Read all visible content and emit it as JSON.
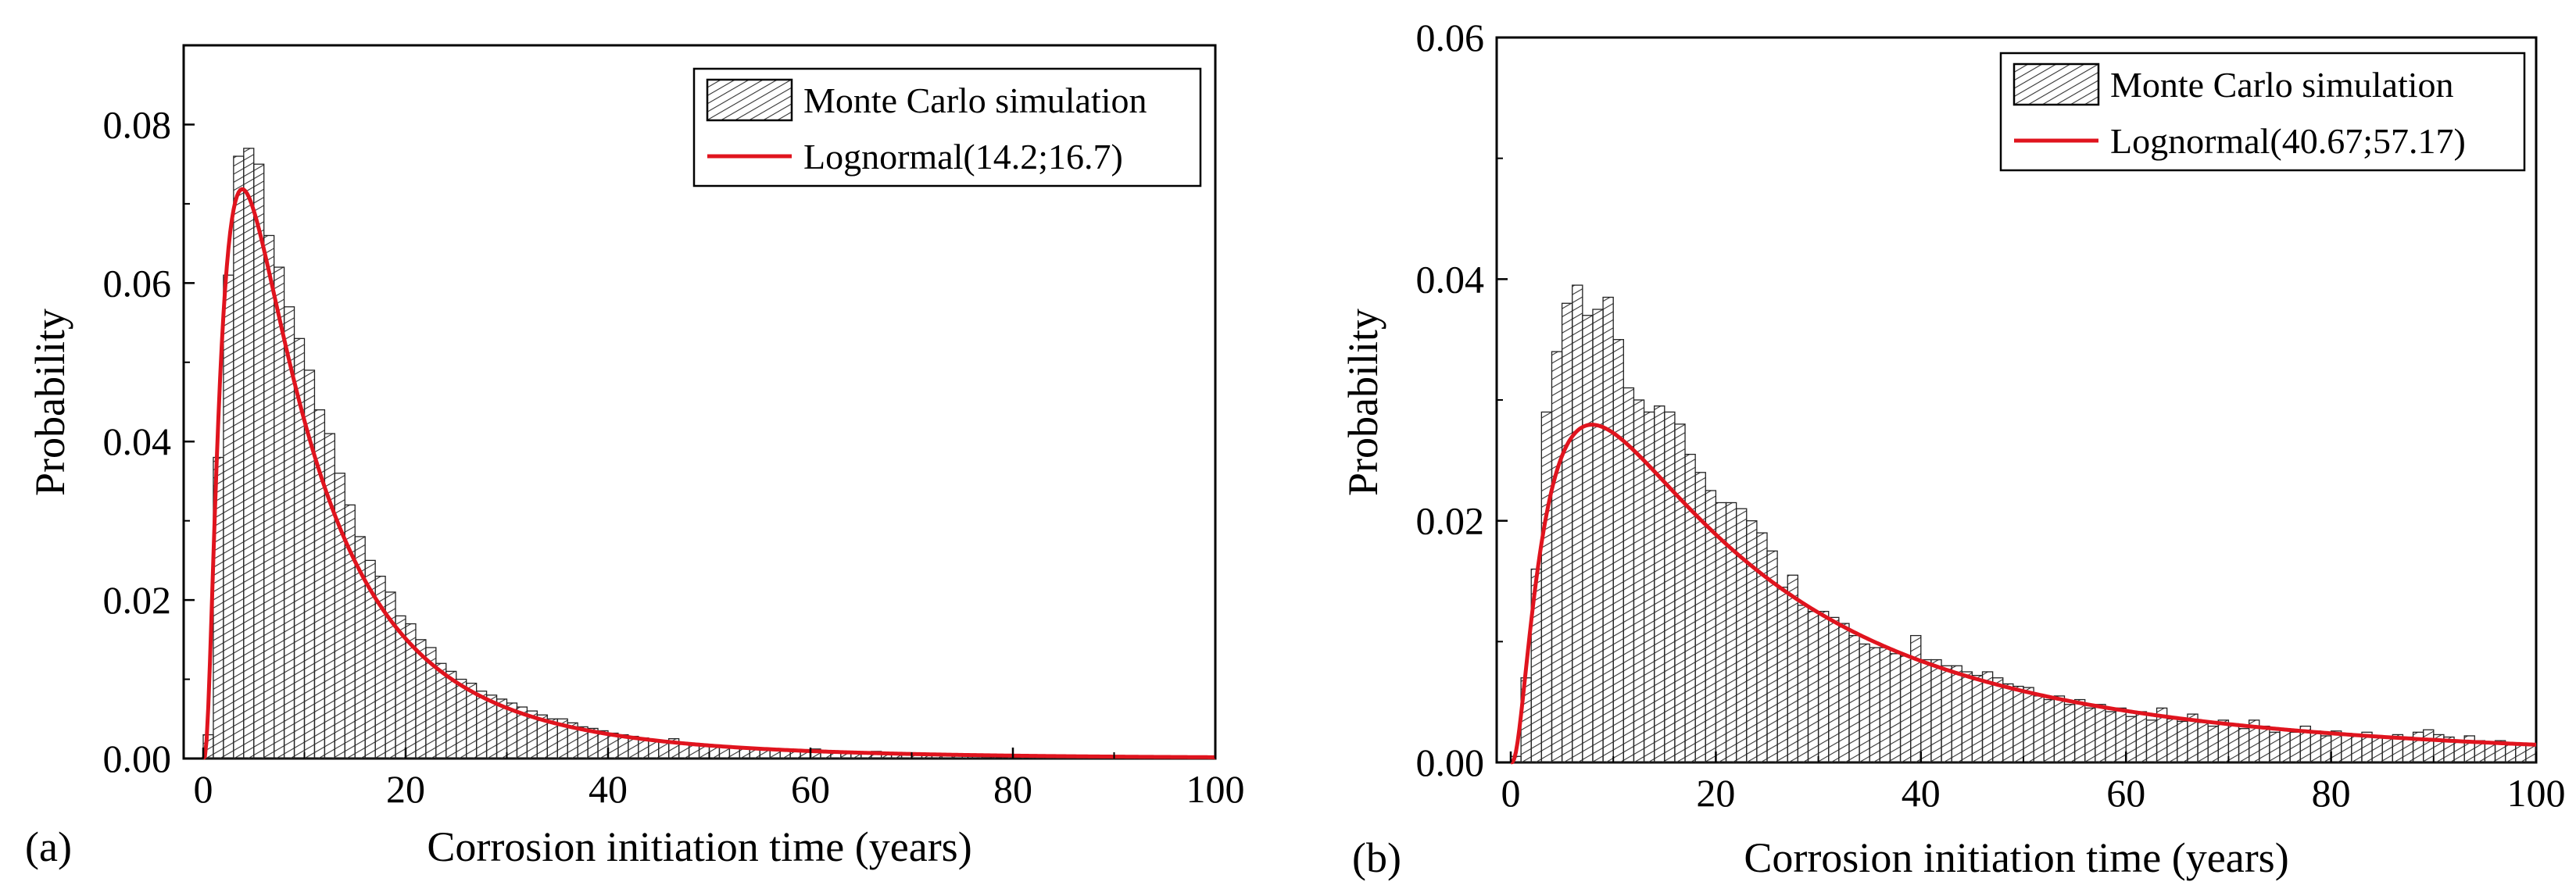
{
  "figure": {
    "description_labels": [
      "(a)",
      "(b)"
    ]
  },
  "colors": {
    "curve": "#e0141e",
    "bar_fill": "#ffffff",
    "bar_edge": "#222222",
    "hatch": "#333333",
    "axis": "#000000"
  },
  "chart_data": [
    {
      "type": "bar",
      "panel_label": "(a)",
      "xlabel": "Corrosion initiation time (years)",
      "ylabel": "Probability",
      "xlim": [
        0,
        100
      ],
      "ylim": [
        0,
        0.09
      ],
      "xticks": [
        0,
        20,
        40,
        60,
        80,
        100
      ],
      "xtick_labels": [
        "0",
        "20",
        "40",
        "60",
        "80",
        "100"
      ],
      "yticks": [
        0.0,
        0.02,
        0.04,
        0.06,
        0.08
      ],
      "ytick_labels": [
        "0.00",
        "0.02",
        "0.04",
        "0.06",
        "0.08"
      ],
      "legend": {
        "position": "top-right",
        "histogram_label": "Monte Carlo simulation",
        "curve_label": "Lognormal(14.2;16.7)"
      },
      "histogram": {
        "name": "Monte Carlo simulation",
        "bin_width": 1,
        "bin_start": 0,
        "values": [
          0.003,
          0.038,
          0.061,
          0.076,
          0.077,
          0.075,
          0.066,
          0.062,
          0.057,
          0.053,
          0.049,
          0.044,
          0.041,
          0.036,
          0.032,
          0.028,
          0.025,
          0.023,
          0.021,
          0.018,
          0.017,
          0.015,
          0.014,
          0.012,
          0.011,
          0.01,
          0.0095,
          0.0085,
          0.008,
          0.0075,
          0.007,
          0.0065,
          0.006,
          0.0055,
          0.005,
          0.005,
          0.0045,
          0.004,
          0.0038,
          0.0035,
          0.0032,
          0.003,
          0.0028,
          0.0026,
          0.0024,
          0.0022,
          0.0025,
          0.002,
          0.0018,
          0.0017,
          0.0016,
          0.0015,
          0.0014,
          0.0013,
          0.0012,
          0.0012,
          0.0011,
          0.001,
          0.001,
          0.0009,
          0.0012,
          0.0009,
          0.0008,
          0.0008,
          0.0007,
          0.0007,
          0.0009,
          0.0006,
          0.0006,
          0.0005,
          0.0007,
          0.0005,
          0.0005,
          0.0004,
          0.0004,
          0.0004,
          0.0003,
          0.0003,
          0.0003,
          0.0003,
          0.0003,
          0.0002,
          0.0002,
          0.0002,
          0.0002,
          0.0002,
          0.0002,
          0.0002,
          0.0001,
          0.0001,
          0.0002,
          0.0001,
          0.0001,
          0.0001,
          0.0001,
          0.0001,
          0.0001,
          0.0001,
          0.0001,
          0.0001
        ]
      },
      "curve": {
        "name": "Lognormal(14.2;16.7)",
        "mean": 14.2,
        "std": 16.7
      }
    },
    {
      "type": "bar",
      "panel_label": "(b)",
      "xlabel": "Corrosion initiation time (years)",
      "ylabel": "Probability",
      "xlim": [
        0,
        100
      ],
      "ylim": [
        0,
        0.06
      ],
      "xticks": [
        0,
        20,
        40,
        60,
        80,
        100
      ],
      "xtick_labels": [
        "0",
        "20",
        "40",
        "60",
        "80",
        "100"
      ],
      "yticks": [
        0.0,
        0.02,
        0.04,
        0.06
      ],
      "ytick_labels": [
        "0.00",
        "0.02",
        "0.04",
        "0.06"
      ],
      "legend": {
        "position": "top-right",
        "histogram_label": "Monte Carlo simulation",
        "curve_label": "Lognormal(40.67;57.17)"
      },
      "histogram": {
        "name": "Monte Carlo simulation",
        "bin_width": 1,
        "bin_start": 0,
        "values": [
          0.0005,
          0.007,
          0.016,
          0.029,
          0.034,
          0.038,
          0.0395,
          0.037,
          0.0375,
          0.0385,
          0.035,
          0.031,
          0.03,
          0.029,
          0.0295,
          0.029,
          0.028,
          0.0255,
          0.024,
          0.0225,
          0.0215,
          0.0215,
          0.021,
          0.02,
          0.019,
          0.0175,
          0.0145,
          0.0155,
          0.013,
          0.0125,
          0.0125,
          0.012,
          0.0115,
          0.0105,
          0.0098,
          0.0095,
          0.0095,
          0.009,
          0.0088,
          0.0105,
          0.0085,
          0.0085,
          0.008,
          0.008,
          0.0075,
          0.0072,
          0.0075,
          0.007,
          0.0065,
          0.0063,
          0.0062,
          0.0055,
          0.0052,
          0.0055,
          0.0048,
          0.0052,
          0.0045,
          0.0048,
          0.0042,
          0.0045,
          0.0038,
          0.0042,
          0.0035,
          0.0045,
          0.0036,
          0.0034,
          0.004,
          0.0033,
          0.003,
          0.0035,
          0.0032,
          0.0028,
          0.0035,
          0.003,
          0.0025,
          0.0028,
          0.0025,
          0.003,
          0.0026,
          0.0022,
          0.0026,
          0.0024,
          0.0022,
          0.0025,
          0.0021,
          0.002,
          0.0023,
          0.0021,
          0.0025,
          0.0027,
          0.0023,
          0.0021,
          0.0018,
          0.0022,
          0.0018,
          0.0016,
          0.0018,
          0.0015,
          0.0016,
          0.0015
        ]
      },
      "curve": {
        "name": "Lognormal(40.67;57.17)",
        "mean": 40.67,
        "std": 57.17
      }
    }
  ]
}
